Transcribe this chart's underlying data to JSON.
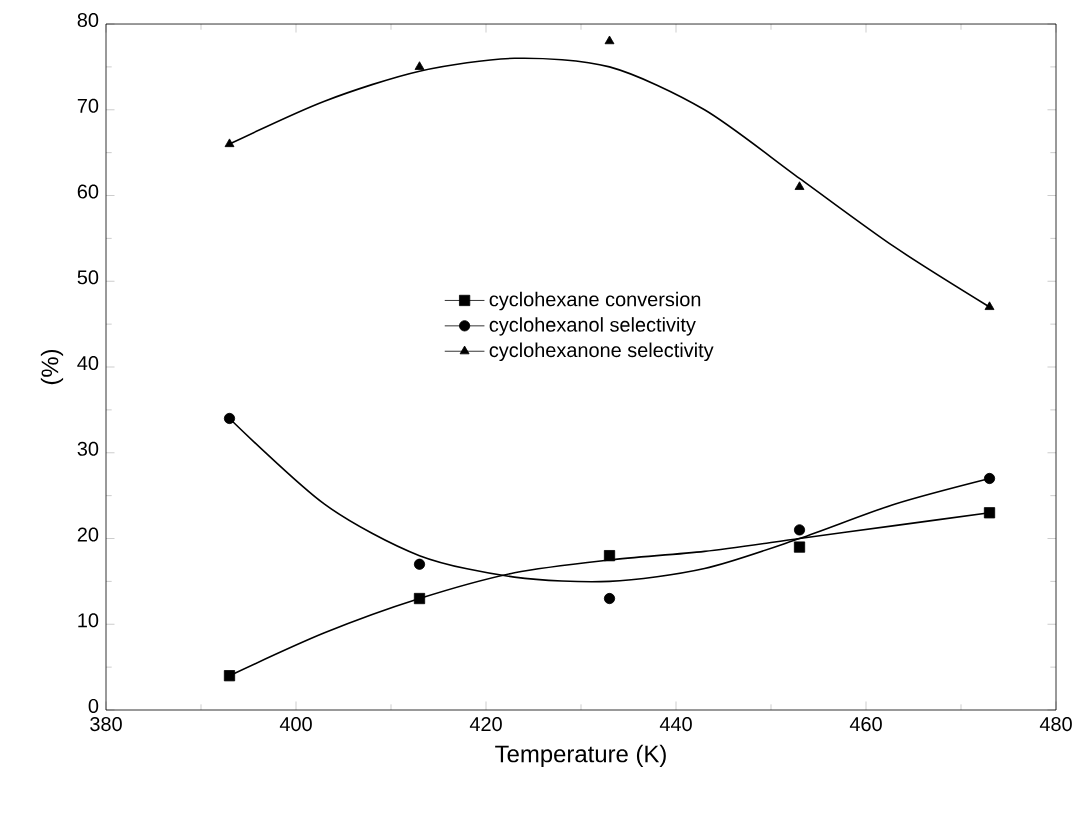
{
  "chart_data": {
    "type": "scatter",
    "xlabel": "Temperature (K)",
    "ylabel": "(%)",
    "xlim": [
      380,
      480
    ],
    "ylim": [
      0,
      80
    ],
    "xticks": [
      380,
      400,
      420,
      440,
      460,
      480
    ],
    "yticks": [
      0,
      10,
      20,
      30,
      40,
      50,
      60,
      70,
      80
    ],
    "grid": false,
    "legend": "center",
    "series": [
      {
        "name": "cyclohexane conversion",
        "marker": "square",
        "color": "#000000",
        "x": [
          393,
          413,
          433,
          453,
          473
        ],
        "values": [
          4,
          13,
          18,
          19,
          23
        ]
      },
      {
        "name": "cyclohexanol selectivity",
        "marker": "circle",
        "color": "#000000",
        "x": [
          393,
          413,
          433,
          453,
          473
        ],
        "values": [
          34,
          17,
          13,
          21,
          27
        ]
      },
      {
        "name": "cyclohexanone selectivity",
        "marker": "triangle",
        "color": "#000000",
        "x": [
          393,
          413,
          433,
          453,
          473
        ],
        "values": [
          66,
          75,
          78,
          61,
          47
        ]
      },
      {
        "type": "line",
        "marker": "none",
        "color": "#000000",
        "x": [
          393,
          403,
          413,
          423,
          433,
          443,
          453,
          463,
          473
        ],
        "values": [
          4,
          9,
          13,
          16,
          17.5,
          18.5,
          20,
          21.5,
          23
        ]
      },
      {
        "type": "line",
        "marker": "none",
        "color": "#000000",
        "x": [
          393,
          403,
          413,
          423,
          433,
          443,
          453,
          463,
          473
        ],
        "values": [
          34,
          24,
          18,
          15.5,
          15,
          16.5,
          20,
          24,
          27
        ]
      },
      {
        "type": "line",
        "marker": "none",
        "color": "#000000",
        "x": [
          393,
          403,
          413,
          423,
          433,
          443,
          453,
          463,
          473
        ],
        "values": [
          66,
          71,
          74.5,
          76,
          75,
          70,
          62,
          54,
          47
        ]
      }
    ]
  }
}
